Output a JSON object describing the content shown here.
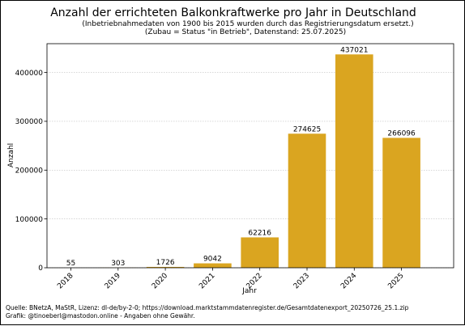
{
  "title": "Anzahl der errichteten Balkonkraftwerke pro Jahr in Deutschland",
  "subtitle_line1": "(Inbetriebnahmedaten von 1900 bis 2015 wurden durch das Registrierungsdatum ersetzt.)",
  "subtitle_line2": "(Zubau = Status \"in Betrieb\", Datenstand: 25.07.2025)",
  "footer": {
    "source": "Quelle: BNetzA, MaStR, Lizenz: dl-de/by-2-0; https://download.marktstammdatenregister.de/Gesamtdatenexport_20250726_25.1.zip",
    "credit": "Grafik: @tinoeberl@mastodon.online - Angaben ohne Gewähr."
  },
  "colors": {
    "bar": "#DAA520",
    "grid": "#b0b0b0",
    "axis": "#000000"
  },
  "chart_data": {
    "type": "bar",
    "title": "Anzahl der errichteten Balkonkraftwerke pro Jahr in Deutschland",
    "xlabel": "Jahr",
    "ylabel": "Anzahl",
    "categories": [
      "2018",
      "2019",
      "2020",
      "2021",
      "2022",
      "2023",
      "2024",
      "2025"
    ],
    "values": [
      55,
      303,
      1726,
      9042,
      62216,
      274625,
      437021,
      266096
    ],
    "data_labels": [
      "55",
      "303",
      "1726",
      "9042",
      "62216",
      "274625",
      "437021",
      "266096"
    ],
    "ylim": [
      0,
      459000
    ],
    "yticks": [
      0,
      100000,
      200000,
      300000,
      400000
    ],
    "grid": true,
    "legend": "none"
  }
}
